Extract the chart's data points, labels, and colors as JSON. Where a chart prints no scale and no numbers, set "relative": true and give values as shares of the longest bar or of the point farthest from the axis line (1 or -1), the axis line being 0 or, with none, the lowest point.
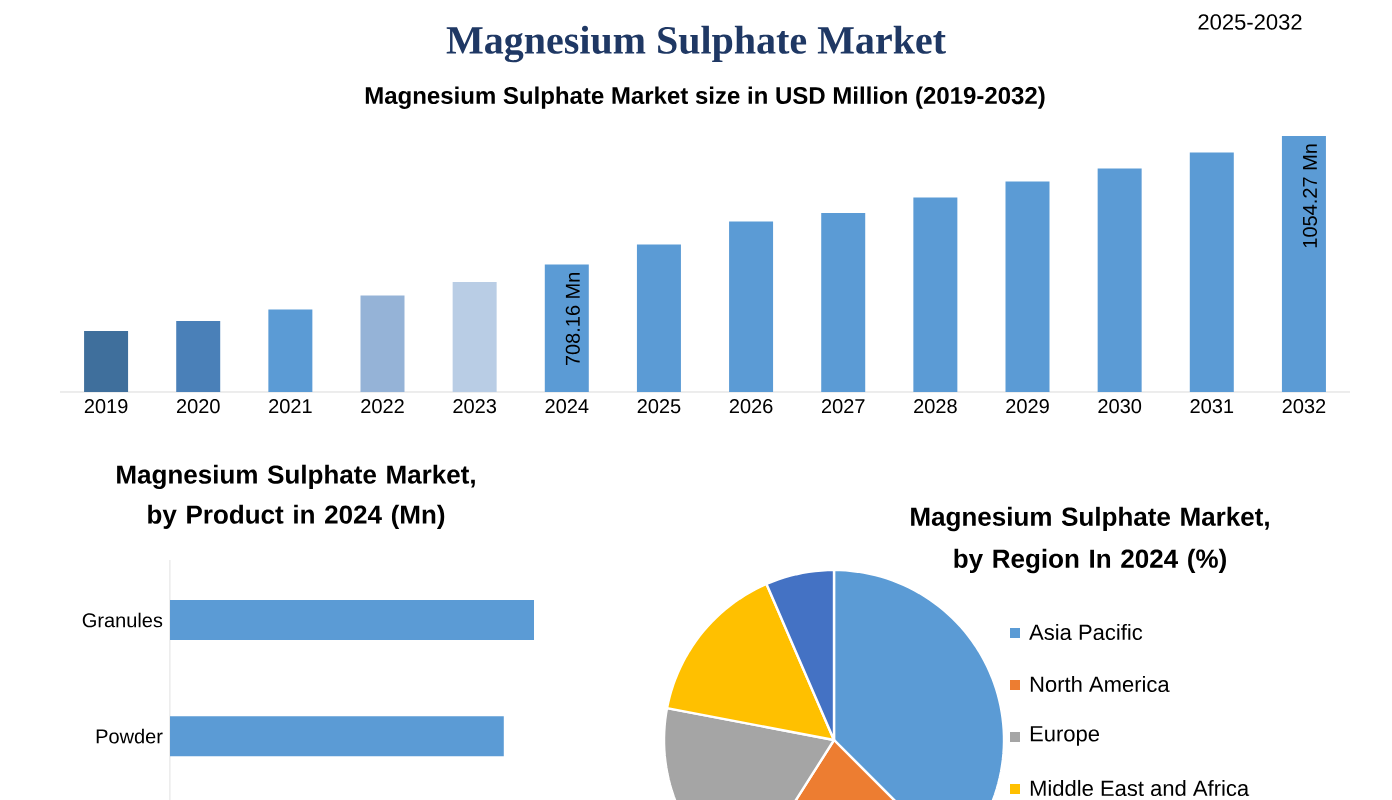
{
  "chart_data": [
    {
      "type": "other",
      "title": "Magnesium Sulphate Market",
      "annotations": [
        "2025-2032"
      ]
    },
    {
      "type": "bar",
      "title": "Magnesium Sulphate Market size in USD Million (2019-2032)",
      "categories": [
        "2019",
        "2020",
        "2021",
        "2022",
        "2023",
        "2024",
        "2025",
        "2026",
        "2027",
        "2028",
        "2029",
        "2030",
        "2031",
        "2032"
      ],
      "values": [
        529,
        556,
        587,
        625,
        661,
        708.16,
        762,
        824,
        847,
        889,
        932,
        967,
        1010,
        1054.27
      ],
      "colors": [
        "#3f6f9c",
        "#4a80b8",
        "#5b9bd5",
        "#95b3d7",
        "#b9cde5",
        "#5b9bd5",
        "#5b9bd5",
        "#5b9bd5",
        "#5b9bd5",
        "#5b9bd5",
        "#5b9bd5",
        "#5b9bd5",
        "#5b9bd5",
        "#5b9bd5"
      ],
      "value_labels": [
        null,
        null,
        null,
        null,
        null,
        "708.16 Mn",
        null,
        null,
        null,
        null,
        null,
        null,
        null,
        "1054.27 Mn"
      ],
      "ylim": [
        365,
        1054.27
      ]
    },
    {
      "type": "bar",
      "orientation": "horizontal",
      "relative": true,
      "title": "Magnesium Sulphate Market, by Product in 2024 (Mn)",
      "categories": [
        "Granules",
        "Powder"
      ],
      "values": [
        1,
        0.917
      ],
      "color": "#5b9bd5"
    },
    {
      "type": "pie",
      "title": "Magnesium Sulphate Market, by Region In 2024 (%)",
      "categories": [
        "Asia Pacific",
        "North America",
        "Europe",
        "Middle East and Africa",
        null
      ],
      "values": [
        37.5,
        21.5,
        19,
        15.5,
        6.5
      ],
      "colors": [
        "#5b9bd5",
        "#ed7d31",
        "#a5a5a5",
        "#ffc000",
        "#4472c4"
      ],
      "legend": "right"
    }
  ]
}
